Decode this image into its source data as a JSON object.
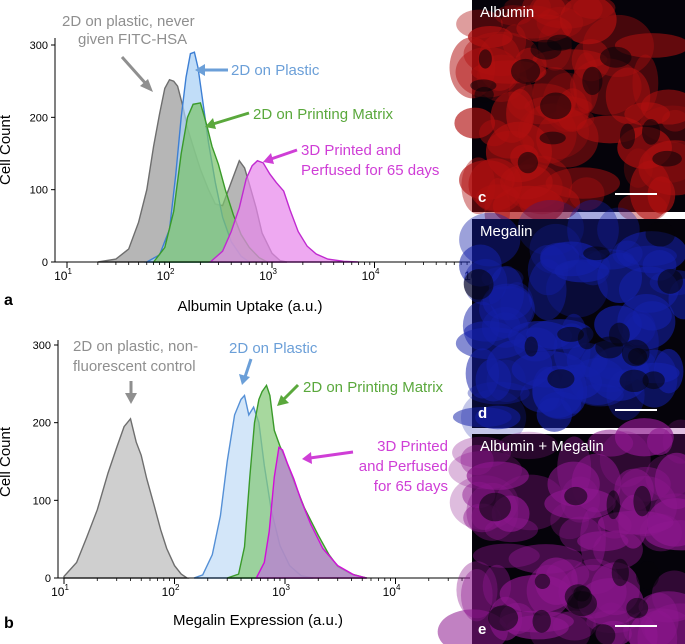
{
  "panels": [
    {
      "letter": "a",
      "ylabel": "Cell Count",
      "xlabel": "Albumin Uptake (a.u.)",
      "ymax": 300,
      "yticks": [
        {
          "label": "300",
          "v": 300
        },
        {
          "label": "200",
          "v": 200
        },
        {
          "label": "100",
          "v": 100
        },
        {
          "label": "0",
          "v": 0
        }
      ],
      "xticks": [
        {
          "pow": 1,
          "show": "x"
        },
        {
          "pow": 2,
          "show": "x"
        },
        {
          "pow": 3,
          "show": "x"
        },
        {
          "pow": 4,
          "show": "x"
        },
        {
          "pow": 5,
          "show": "cut"
        }
      ]
    },
    {
      "letter": "b",
      "ylabel": "Cell Count",
      "xlabel": "Megalin Expression (a.u.)",
      "ymax": 300,
      "yticks": [
        {
          "label": "300",
          "v": 300
        },
        {
          "label": "200",
          "v": 200
        },
        {
          "label": "100",
          "v": 100
        },
        {
          "label": "0",
          "v": 0
        }
      ],
      "xticks": [
        {
          "pow": 1,
          "show": "x"
        },
        {
          "pow": 2,
          "show": "x"
        },
        {
          "pow": 3,
          "show": "x"
        },
        {
          "pow": 4,
          "show": "x"
        },
        {
          "pow": 5,
          "show": "none"
        }
      ]
    }
  ],
  "chart_data": [
    {
      "type": "area",
      "x_scale": "log",
      "xlim": [
        10,
        100000
      ],
      "ylim": [
        0,
        300
      ],
      "xlabel": "Albumin Uptake (a.u.)",
      "ylabel": "Cell Count",
      "series": [
        {
          "name": "2D on plastic, never given FITC-HSA",
          "fill": "#9a9a9a",
          "stroke": "#6e6e6e",
          "points": [
            [
              20,
              0
            ],
            [
              30,
              4
            ],
            [
              40,
              18
            ],
            [
              50,
              55
            ],
            [
              60,
              100
            ],
            [
              70,
              160
            ],
            [
              80,
              205
            ],
            [
              90,
              240
            ],
            [
              100,
              252
            ],
            [
              110,
              250
            ],
            [
              120,
              243
            ],
            [
              135,
              215
            ],
            [
              150,
              185
            ],
            [
              170,
              160
            ],
            [
              200,
              128
            ],
            [
              240,
              100
            ],
            [
              280,
              80
            ],
            [
              330,
              78
            ],
            [
              400,
              110
            ],
            [
              480,
              140
            ],
            [
              540,
              130
            ],
            [
              600,
              108
            ],
            [
              700,
              75
            ],
            [
              800,
              40
            ],
            [
              1000,
              12
            ],
            [
              1200,
              2
            ],
            [
              1400,
              0
            ]
          ]
        },
        {
          "name": "2D on Plastic",
          "fill": "#a9d0f5",
          "stroke": "#3d7fd4",
          "points": [
            [
              60,
              0
            ],
            [
              80,
              10
            ],
            [
              100,
              45
            ],
            [
              115,
              120
            ],
            [
              130,
              200
            ],
            [
              145,
              255
            ],
            [
              160,
              288
            ],
            [
              175,
              290
            ],
            [
              190,
              268
            ],
            [
              210,
              225
            ],
            [
              240,
              165
            ],
            [
              280,
              110
            ],
            [
              330,
              62
            ],
            [
              400,
              28
            ],
            [
              500,
              8
            ],
            [
              600,
              0
            ]
          ]
        },
        {
          "name": "2D on Printing Matrix",
          "fill": "#7cc46c",
          "stroke": "#3a9a2a",
          "points": [
            [
              70,
              0
            ],
            [
              90,
              20
            ],
            [
              110,
              70
            ],
            [
              130,
              150
            ],
            [
              150,
              200
            ],
            [
              170,
              218
            ],
            [
              200,
              220
            ],
            [
              230,
              190
            ],
            [
              260,
              160
            ],
            [
              300,
              135
            ],
            [
              350,
              100
            ],
            [
              420,
              65
            ],
            [
              500,
              38
            ],
            [
              600,
              20
            ],
            [
              750,
              6
            ],
            [
              900,
              0
            ]
          ]
        },
        {
          "name": "3D Printed and Perfused for 65 days",
          "fill": "#e888ec",
          "stroke": "#c02ad0",
          "points": [
            [
              250,
              0
            ],
            [
              330,
              15
            ],
            [
              400,
              42
            ],
            [
              480,
              75
            ],
            [
              560,
              115
            ],
            [
              640,
              133
            ],
            [
              720,
              140
            ],
            [
              820,
              137
            ],
            [
              950,
              122
            ],
            [
              1100,
              110
            ],
            [
              1300,
              98
            ],
            [
              1500,
              72
            ],
            [
              1800,
              42
            ],
            [
              2200,
              22
            ],
            [
              2700,
              11
            ],
            [
              3500,
              4
            ],
            [
              5000,
              1
            ],
            [
              7000,
              0
            ]
          ]
        }
      ]
    },
    {
      "type": "area",
      "x_scale": "log",
      "xlim": [
        8,
        50000
      ],
      "ylim": [
        0,
        300
      ],
      "xlabel": "Megalin Expression (a.u.)",
      "ylabel": "Cell Count",
      "series": [
        {
          "name": "2D on plastic, non-fluorescent control",
          "fill": "#bdbdbd",
          "stroke": "#6e6e6e",
          "points": [
            [
              10,
              2
            ],
            [
              13,
              20
            ],
            [
              16,
              52
            ],
            [
              20,
              88
            ],
            [
              25,
              135
            ],
            [
              30,
              168
            ],
            [
              35,
              195
            ],
            [
              40,
              205
            ],
            [
              45,
              175
            ],
            [
              50,
              158
            ],
            [
              56,
              128
            ],
            [
              65,
              95
            ],
            [
              75,
              62
            ],
            [
              85,
              38
            ],
            [
              100,
              16
            ],
            [
              115,
              5
            ],
            [
              130,
              0
            ]
          ]
        },
        {
          "name": "2D on Plastic",
          "fill": "#c2ddf6",
          "stroke": "#5590d6",
          "points": [
            [
              150,
              0
            ],
            [
              180,
              4
            ],
            [
              220,
              30
            ],
            [
              260,
              80
            ],
            [
              300,
              150
            ],
            [
              350,
              210
            ],
            [
              400,
              230
            ],
            [
              430,
              235
            ],
            [
              470,
              210
            ],
            [
              520,
              220
            ],
            [
              580,
              200
            ],
            [
              650,
              145
            ],
            [
              750,
              88
            ],
            [
              900,
              42
            ],
            [
              1100,
              16
            ],
            [
              1400,
              3
            ],
            [
              1800,
              0
            ]
          ]
        },
        {
          "name": "2D on Printing Matrix",
          "fill": "#85c978",
          "stroke": "#3a9a2a",
          "points": [
            [
              300,
              0
            ],
            [
              380,
              5
            ],
            [
              430,
              40
            ],
            [
              480,
              130
            ],
            [
              530,
              200
            ],
            [
              580,
              230
            ],
            [
              620,
              240
            ],
            [
              680,
              248
            ],
            [
              730,
              235
            ],
            [
              800,
              190
            ],
            [
              900,
              170
            ],
            [
              1000,
              155
            ],
            [
              1200,
              125
            ],
            [
              1500,
              90
            ],
            [
              2000,
              55
            ],
            [
              2500,
              30
            ],
            [
              3000,
              15
            ],
            [
              4000,
              5
            ],
            [
              5500,
              0
            ]
          ]
        },
        {
          "name": "3D Printed and Perfused for 65 days",
          "fill": "#bd7ad6",
          "stroke": "#d010d8",
          "points": [
            [
              550,
              0
            ],
            [
              650,
              20
            ],
            [
              720,
              60
            ],
            [
              800,
              130
            ],
            [
              880,
              168
            ],
            [
              950,
              165
            ],
            [
              1050,
              148
            ],
            [
              1200,
              128
            ],
            [
              1400,
              100
            ],
            [
              1700,
              70
            ],
            [
              2200,
              38
            ],
            [
              3000,
              16
            ],
            [
              4200,
              4
            ],
            [
              5500,
              0
            ]
          ]
        }
      ]
    }
  ],
  "annotations_a": {
    "gray": {
      "line1": "2D on plastic, never",
      "line2": "given FITC-HSA",
      "color": "#8f8f8f"
    },
    "blue": {
      "text": "2D on Plastic",
      "color": "#6b9fd8"
    },
    "green": {
      "text": "2D on Printing Matrix",
      "color": "#5aa83c"
    },
    "pink": {
      "line1": "3D Printed and",
      "line2": "Perfused for 65 days",
      "color": "#cf3ed6"
    }
  },
  "annotations_b": {
    "gray": {
      "line1": "2D on plastic, non-",
      "line2": "fluorescent control",
      "color": "#8f8f8f"
    },
    "blue": {
      "text": "2D on Plastic",
      "color": "#6b9fd8"
    },
    "green": {
      "text": "2D on Printing Matrix",
      "color": "#5aa83c"
    },
    "pink": {
      "line1": "3D Printed",
      "line2": "and Perfused",
      "line3": "for 65 days",
      "color": "#cf3ed6"
    }
  },
  "micrographs": [
    {
      "title": "Albumin",
      "letter": "c",
      "color": "#b01010"
    },
    {
      "title": "Megalin",
      "letter": "d",
      "color": "#1420a8"
    },
    {
      "title": "Albumin + Megalin",
      "letter": "e",
      "color": "#8d178e"
    }
  ]
}
